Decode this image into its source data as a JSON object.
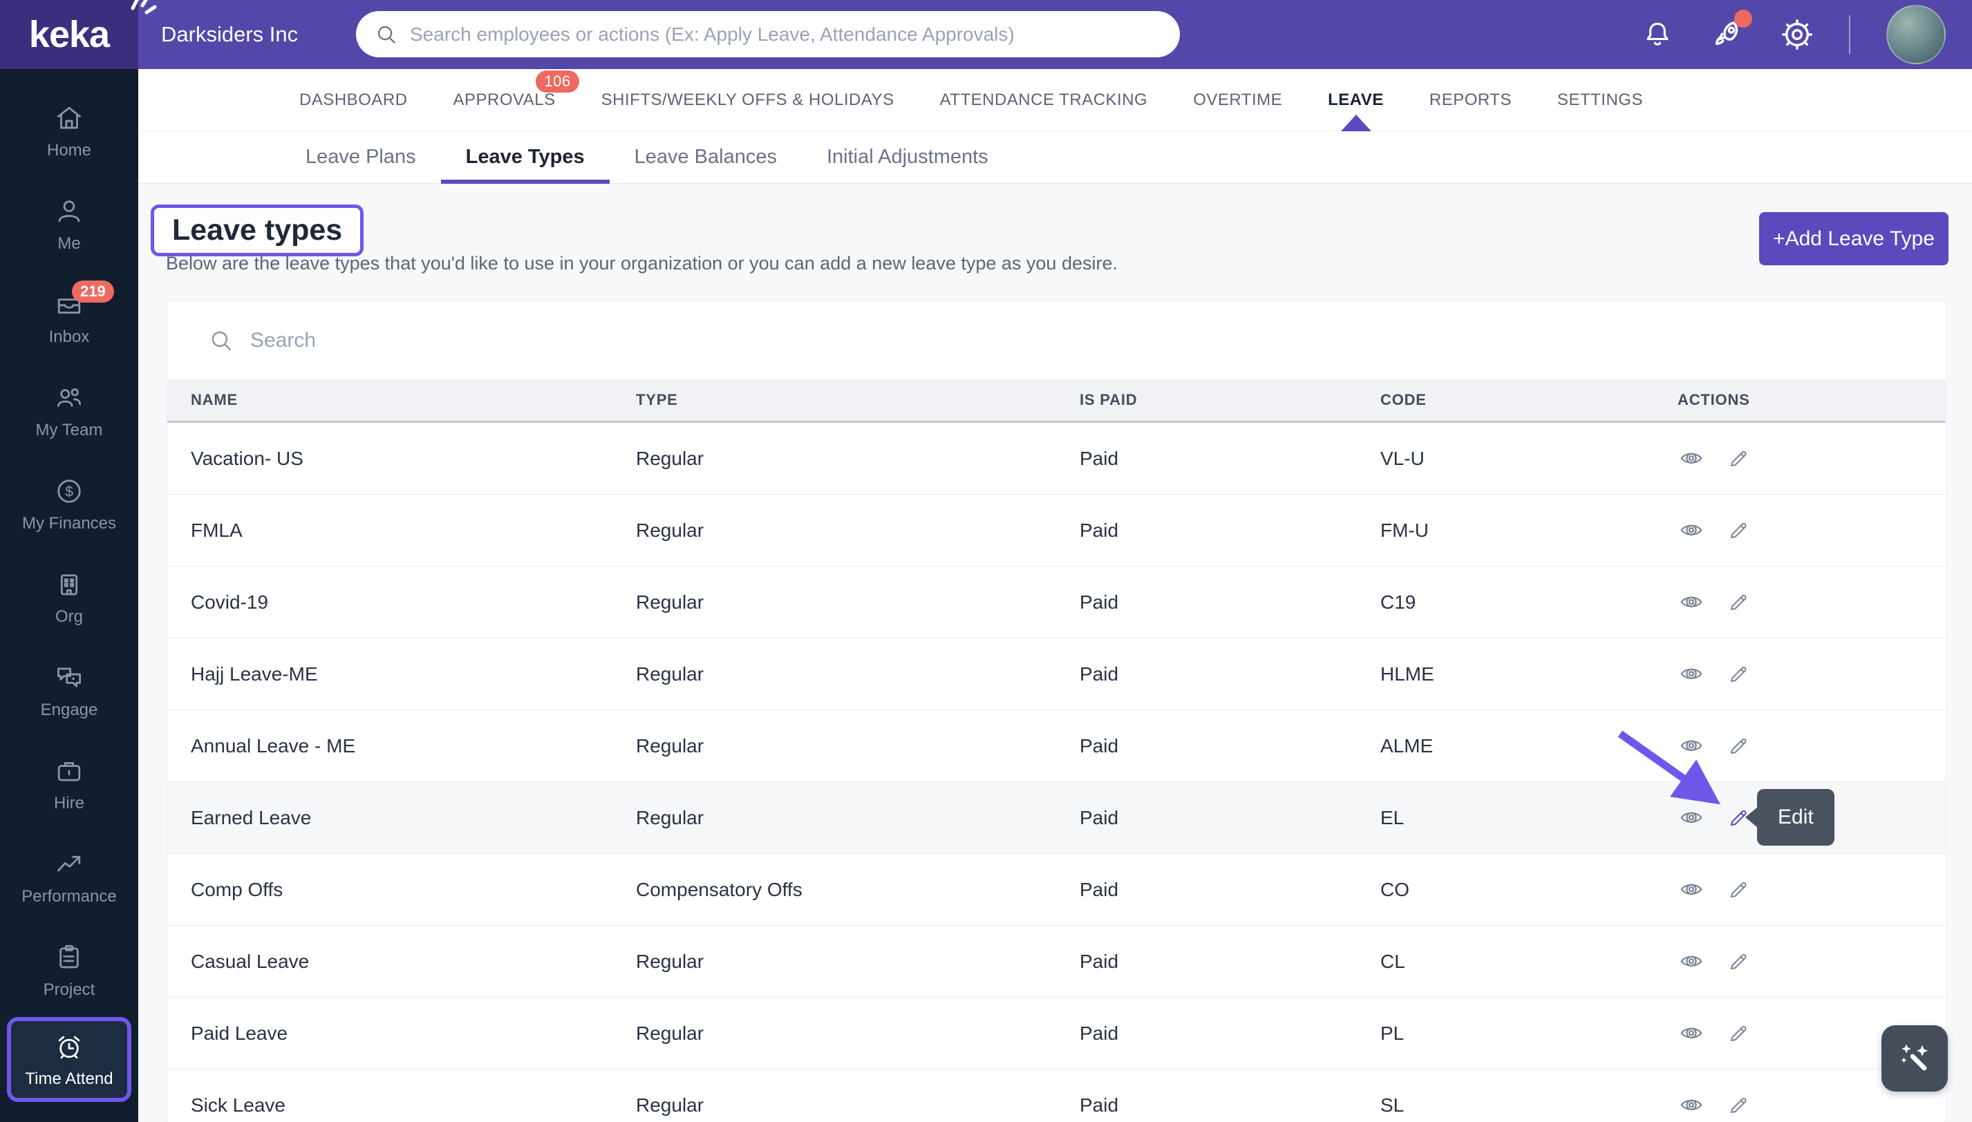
{
  "colors": {
    "header_purple": "#5348a9",
    "logo_purple": "#3b2f7d",
    "sidebar_navy": "#111e2d",
    "accent_purple": "#5b4ac0",
    "annotation_purple": "#7156ea",
    "badge_salmon": "#ed6a60",
    "tooltip_slate": "#4a5260"
  },
  "brand": {
    "logo_text": "keka",
    "company_name": "Darksiders Inc"
  },
  "topbar": {
    "search_placeholder": "Search employees or actions (Ex: Apply Leave, Attendance Approvals)",
    "icons": [
      "bell-icon",
      "rocket-icon",
      "gear-icon",
      "avatar"
    ]
  },
  "nav": {
    "tabs": [
      {
        "label": "DASHBOARD"
      },
      {
        "label": "APPROVALS",
        "badge": "106"
      },
      {
        "label": "SHIFTS/WEEKLY OFFS & HOLIDAYS"
      },
      {
        "label": "ATTENDANCE TRACKING"
      },
      {
        "label": "OVERTIME"
      },
      {
        "label": "LEAVE",
        "active": true
      },
      {
        "label": "REPORTS"
      },
      {
        "label": "SETTINGS"
      }
    ]
  },
  "subnav": {
    "tabs": [
      {
        "label": "Leave Plans"
      },
      {
        "label": "Leave Types",
        "active": true
      },
      {
        "label": "Leave Balances"
      },
      {
        "label": "Initial Adjustments"
      }
    ]
  },
  "page": {
    "title": "Leave types",
    "subtitle": "Below are the leave types that you'd like to use in your organization or you can add a new leave type as you desire.",
    "add_button_label": "+Add Leave Type"
  },
  "list": {
    "search_placeholder": "Search",
    "columns": [
      "NAME",
      "TYPE",
      "IS PAID",
      "CODE",
      "ACTIONS"
    ],
    "rows": [
      {
        "name": "Vacation- US",
        "type": "Regular",
        "is_paid": "Paid",
        "code": "VL-U"
      },
      {
        "name": "FMLA",
        "type": "Regular",
        "is_paid": "Paid",
        "code": "FM-U"
      },
      {
        "name": "Covid-19",
        "type": "Regular",
        "is_paid": "Paid",
        "code": "C19"
      },
      {
        "name": "Hajj Leave-ME",
        "type": "Regular",
        "is_paid": "Paid",
        "code": "HLME"
      },
      {
        "name": "Annual Leave - ME",
        "type": "Regular",
        "is_paid": "Paid",
        "code": "ALME"
      },
      {
        "name": "Earned Leave",
        "type": "Regular",
        "is_paid": "Paid",
        "code": "EL",
        "highlighted": true
      },
      {
        "name": "Comp Offs",
        "type": "Compensatory Offs",
        "is_paid": "Paid",
        "code": "CO"
      },
      {
        "name": "Casual Leave",
        "type": "Regular",
        "is_paid": "Paid",
        "code": "CL"
      },
      {
        "name": "Paid Leave",
        "type": "Regular",
        "is_paid": "Paid",
        "code": "PL"
      },
      {
        "name": "Sick Leave",
        "type": "Regular",
        "is_paid": "Paid",
        "code": "SL"
      }
    ]
  },
  "sidebar": {
    "items": [
      {
        "label": "Home",
        "icon": "home-icon"
      },
      {
        "label": "Me",
        "icon": "person-icon"
      },
      {
        "label": "Inbox",
        "icon": "inbox-icon",
        "badge": "219"
      },
      {
        "label": "My Team",
        "icon": "team-icon"
      },
      {
        "label": "My Finances",
        "icon": "dollar-icon"
      },
      {
        "label": "Org",
        "icon": "building-icon"
      },
      {
        "label": "Engage",
        "icon": "chat-icon"
      },
      {
        "label": "Hire",
        "icon": "briefcase-icon"
      },
      {
        "label": "Performance",
        "icon": "trend-icon"
      },
      {
        "label": "Project",
        "icon": "clipboard-icon"
      },
      {
        "label": "Time Attend",
        "icon": "alarm-clock-icon",
        "active": true
      }
    ]
  },
  "annotations": {
    "edit_tooltip_label": "Edit"
  }
}
